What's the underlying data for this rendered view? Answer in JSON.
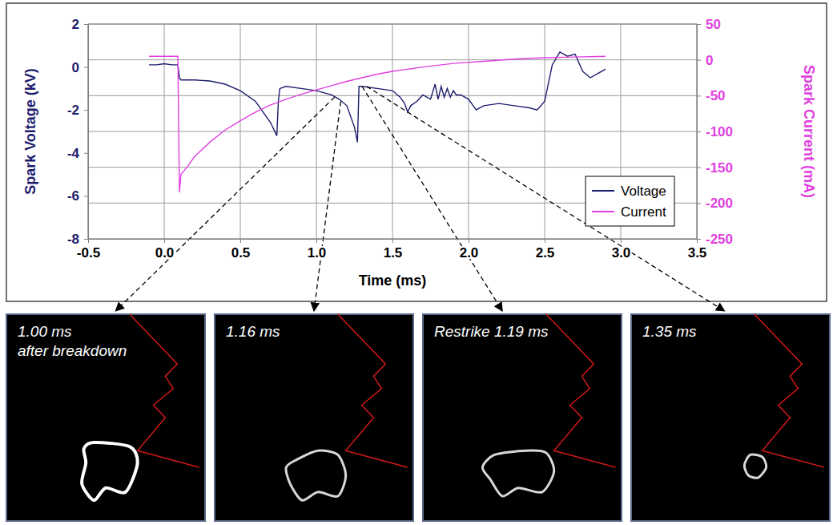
{
  "chart_data": {
    "type": "line",
    "xlabel": "Time (ms)",
    "ylabel": "Spark Voltage (kV)",
    "y2label": "Spark Current (mA)",
    "xlim": [
      -0.5,
      3.5
    ],
    "xticks": [
      -0.5,
      {
        "value": 0,
        "label": "0.0"
      },
      0.5,
      {
        "value": 1,
        "label": "1.0"
      },
      1.5,
      {
        "value": 2,
        "label": "2.0"
      },
      2.5,
      {
        "value": 3,
        "label": "3.0"
      },
      3.5
    ],
    "ylim": [
      -8,
      2
    ],
    "yticks": [
      -8,
      -6,
      -4,
      -2,
      0,
      2
    ],
    "y2lim": [
      -250,
      50
    ],
    "y2ticks": [
      -250,
      -200,
      -150,
      -100,
      -50,
      0,
      50
    ],
    "grid": true,
    "legend": "lower right",
    "series": [
      {
        "name": "Voltage",
        "color": "#1c1c6e",
        "x": [
          -0.1,
          -0.05,
          0,
          0.05,
          0.09,
          0.1,
          0.11,
          0.15,
          0.2,
          0.3,
          0.4,
          0.5,
          0.6,
          0.65,
          0.7,
          0.74,
          0.75,
          0.76,
          0.8,
          0.9,
          1.0,
          1.1,
          1.15,
          1.2,
          1.25,
          1.27,
          1.28,
          1.3,
          1.4,
          1.5,
          1.55,
          1.58,
          1.6,
          1.62,
          1.66,
          1.7,
          1.75,
          1.78,
          1.8,
          1.82,
          1.84,
          1.86,
          1.88,
          1.9,
          1.92,
          1.95,
          2.0,
          2.05,
          2.1,
          2.2,
          2.3,
          2.4,
          2.45,
          2.5,
          2.55,
          2.6,
          2.65,
          2.7,
          2.75,
          2.8,
          2.85,
          2.9
        ],
        "values": [
          0.1,
          0.1,
          0.15,
          0.1,
          0.1,
          -0.5,
          -0.6,
          -0.6,
          -0.6,
          -0.65,
          -0.8,
          -1.1,
          -1.6,
          -2.1,
          -2.6,
          -3.2,
          -1.6,
          -1.0,
          -0.9,
          -1.0,
          -1.1,
          -1.3,
          -1.5,
          -1.8,
          -2.8,
          -3.5,
          -0.9,
          -0.9,
          -1.0,
          -1.1,
          -1.4,
          -1.7,
          -2.1,
          -1.8,
          -1.6,
          -1.3,
          -1.5,
          -0.8,
          -1.5,
          -0.9,
          -1.4,
          -1.0,
          -1.4,
          -1.1,
          -1.3,
          -1.3,
          -1.5,
          -2.0,
          -1.8,
          -1.7,
          -1.8,
          -1.9,
          -2.0,
          -1.6,
          0.1,
          0.7,
          0.5,
          0.6,
          -0.2,
          -0.5,
          -0.3,
          -0.1
        ]
      },
      {
        "name": "Current",
        "color": "#e040e0",
        "axis": "y2",
        "x": [
          -0.1,
          0,
          0.09,
          0.1,
          0.11,
          0.13,
          0.15,
          0.2,
          0.3,
          0.4,
          0.5,
          0.6,
          0.7,
          0.8,
          0.9,
          1.0,
          1.1,
          1.2,
          1.3,
          1.4,
          1.5,
          1.7,
          1.9,
          2.1,
          2.3,
          2.5,
          2.7,
          2.9
        ],
        "values": [
          5,
          5,
          5,
          -185,
          -160,
          -155,
          -150,
          -135,
          -115,
          -98,
          -85,
          -73,
          -63,
          -55,
          -48,
          -42,
          -36,
          -30,
          -25,
          -20,
          -16,
          -10,
          -5,
          -2,
          1,
          3,
          4,
          5
        ]
      }
    ],
    "annotations": [
      {
        "lines": [
          "1.00 ms",
          "after breakdown"
        ],
        "x": 1.12,
        "y": -1.4
      },
      {
        "lines": [
          "1.16 ms"
        ],
        "x": 1.16,
        "y": -1.6
      },
      {
        "lines": [
          "Restrike 1.19 ms"
        ],
        "x": 1.3,
        "y": -0.9
      },
      {
        "lines": [
          "1.35 ms"
        ],
        "x": 1.33,
        "y": -0.9
      }
    ]
  }
}
